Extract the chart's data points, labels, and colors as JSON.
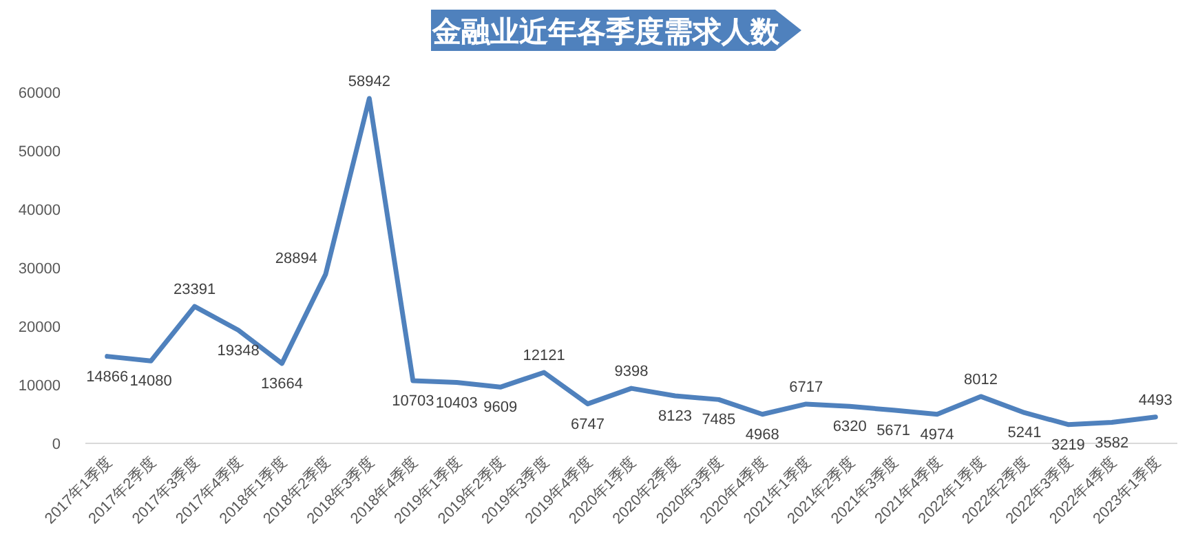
{
  "chart_data": {
    "type": "line",
    "title": "金融业近年各季度需求人数",
    "categories": [
      "2017年1季度",
      "2017年2季度",
      "2017年3季度",
      "2017年4季度",
      "2018年1季度",
      "2018年2季度",
      "2018年3季度",
      "2018年4季度",
      "2019年1季度",
      "2019年2季度",
      "2019年3季度",
      "2019年4季度",
      "2020年1季度",
      "2020年2季度",
      "2020年3季度",
      "2020年4季度",
      "2021年1季度",
      "2021年2季度",
      "2021年3季度",
      "2021年4季度",
      "2022年1季度",
      "2022年2季度",
      "2022年3季度",
      "2022年4季度",
      "2023年1季度"
    ],
    "series": [
      {
        "color": "#4f81bd",
        "values": [
          14866,
          14080,
          23391,
          19348,
          13664,
          28894,
          58942,
          10703,
          10403,
          9609,
          12121,
          6747,
          9398,
          8123,
          7485,
          4968,
          6717,
          6320,
          5671,
          4974,
          8012,
          5241,
          3219,
          3582,
          4493
        ]
      }
    ],
    "ylim": [
      0,
      60000
    ],
    "yticks": [
      0,
      10000,
      20000,
      30000,
      40000,
      50000,
      60000
    ],
    "data_labels": true,
    "grid": false,
    "marker": "none",
    "line_style": "solid"
  }
}
